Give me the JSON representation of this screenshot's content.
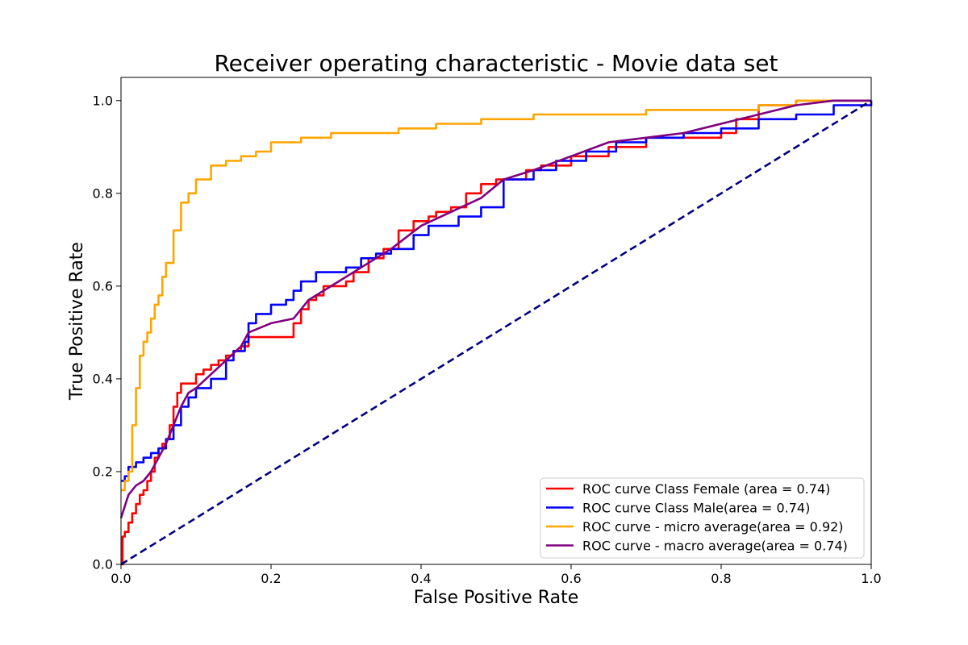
{
  "chart_data": {
    "type": "line",
    "title": "Receiver operating characteristic - Movie data set",
    "xlabel": "False Positive Rate",
    "ylabel": "True Positive Rate",
    "xlim": [
      0.0,
      1.0
    ],
    "ylim": [
      0.0,
      1.05
    ],
    "x_ticks": [
      "0.0",
      "0.2",
      "0.4",
      "0.6",
      "0.8",
      "1.0"
    ],
    "y_ticks": [
      "0.0",
      "0.2",
      "0.4",
      "0.6",
      "0.8",
      "1.0"
    ],
    "grid": false,
    "legend_position": "bottom-right",
    "series": [
      {
        "name": "ROC curve Class Female (area = 0.74)",
        "color": "#ff0000",
        "step": true,
        "x": [
          0.0,
          0.002,
          0.005,
          0.01,
          0.015,
          0.02,
          0.025,
          0.03,
          0.035,
          0.04,
          0.045,
          0.05,
          0.055,
          0.06,
          0.065,
          0.07,
          0.075,
          0.08,
          0.09,
          0.1,
          0.11,
          0.12,
          0.13,
          0.14,
          0.15,
          0.16,
          0.17,
          0.2,
          0.23,
          0.24,
          0.25,
          0.26,
          0.27,
          0.3,
          0.31,
          0.33,
          0.35,
          0.37,
          0.39,
          0.41,
          0.42,
          0.44,
          0.46,
          0.48,
          0.5,
          0.51,
          0.54,
          0.56,
          0.6,
          0.65,
          0.7,
          0.75,
          0.8,
          0.82,
          0.85,
          0.9,
          0.95,
          1.0
        ],
        "y": [
          0.0,
          0.06,
          0.07,
          0.09,
          0.11,
          0.13,
          0.15,
          0.16,
          0.18,
          0.2,
          0.23,
          0.25,
          0.26,
          0.27,
          0.3,
          0.34,
          0.37,
          0.39,
          0.39,
          0.41,
          0.42,
          0.43,
          0.44,
          0.45,
          0.46,
          0.47,
          0.49,
          0.49,
          0.52,
          0.55,
          0.57,
          0.58,
          0.6,
          0.61,
          0.63,
          0.66,
          0.68,
          0.72,
          0.74,
          0.75,
          0.76,
          0.77,
          0.8,
          0.82,
          0.83,
          0.83,
          0.85,
          0.86,
          0.88,
          0.9,
          0.92,
          0.92,
          0.93,
          0.96,
          0.99,
          1.0,
          1.0,
          1.0
        ]
      },
      {
        "name": "ROC curve Class Male(area = 0.74)",
        "color": "#0000ff",
        "step": true,
        "x": [
          0.0,
          0.005,
          0.01,
          0.02,
          0.03,
          0.04,
          0.05,
          0.06,
          0.07,
          0.08,
          0.09,
          0.1,
          0.12,
          0.14,
          0.15,
          0.165,
          0.17,
          0.18,
          0.2,
          0.22,
          0.23,
          0.24,
          0.26,
          0.3,
          0.32,
          0.34,
          0.36,
          0.39,
          0.41,
          0.45,
          0.48,
          0.51,
          0.55,
          0.58,
          0.62,
          0.66,
          0.7,
          0.75,
          0.8,
          0.85,
          0.9,
          0.95,
          1.0
        ],
        "y": [
          0.18,
          0.19,
          0.21,
          0.22,
          0.23,
          0.24,
          0.25,
          0.27,
          0.3,
          0.34,
          0.36,
          0.38,
          0.4,
          0.44,
          0.46,
          0.48,
          0.52,
          0.54,
          0.56,
          0.57,
          0.59,
          0.61,
          0.63,
          0.64,
          0.66,
          0.67,
          0.68,
          0.71,
          0.73,
          0.75,
          0.77,
          0.83,
          0.85,
          0.87,
          0.89,
          0.91,
          0.92,
          0.93,
          0.94,
          0.96,
          0.97,
          0.99,
          1.0
        ]
      },
      {
        "name": "ROC curve - micro average(area = 0.92)",
        "color": "#ffa500",
        "step": true,
        "x": [
          0.0,
          0.005,
          0.01,
          0.015,
          0.02,
          0.025,
          0.03,
          0.035,
          0.04,
          0.045,
          0.05,
          0.055,
          0.06,
          0.07,
          0.08,
          0.09,
          0.1,
          0.12,
          0.14,
          0.16,
          0.18,
          0.2,
          0.24,
          0.28,
          0.33,
          0.37,
          0.42,
          0.48,
          0.55,
          0.62,
          0.7,
          0.78,
          0.85,
          0.9,
          0.95,
          1.0
        ],
        "y": [
          0.16,
          0.18,
          0.2,
          0.3,
          0.38,
          0.45,
          0.48,
          0.5,
          0.53,
          0.56,
          0.58,
          0.62,
          0.65,
          0.72,
          0.78,
          0.8,
          0.83,
          0.86,
          0.87,
          0.88,
          0.89,
          0.91,
          0.92,
          0.93,
          0.93,
          0.94,
          0.95,
          0.96,
          0.97,
          0.97,
          0.98,
          0.98,
          0.99,
          1.0,
          1.0,
          1.0
        ]
      },
      {
        "name": "ROC curve - macro average(area = 0.74)",
        "color": "#800080",
        "step": false,
        "x": [
          0.0,
          0.01,
          0.02,
          0.03,
          0.04,
          0.05,
          0.06,
          0.07,
          0.08,
          0.09,
          0.1,
          0.12,
          0.14,
          0.16,
          0.17,
          0.2,
          0.23,
          0.25,
          0.28,
          0.32,
          0.36,
          0.4,
          0.44,
          0.48,
          0.51,
          0.55,
          0.6,
          0.65,
          0.7,
          0.75,
          0.8,
          0.85,
          0.9,
          0.95,
          1.0
        ],
        "y": [
          0.1,
          0.15,
          0.17,
          0.18,
          0.2,
          0.23,
          0.26,
          0.3,
          0.34,
          0.37,
          0.38,
          0.41,
          0.44,
          0.47,
          0.5,
          0.52,
          0.53,
          0.57,
          0.6,
          0.64,
          0.68,
          0.73,
          0.76,
          0.79,
          0.83,
          0.85,
          0.88,
          0.91,
          0.92,
          0.93,
          0.95,
          0.97,
          0.99,
          1.0,
          1.0
        ]
      },
      {
        "name": "",
        "color": "#000080",
        "dashed": true,
        "step": false,
        "x": [
          0.0,
          1.0
        ],
        "y": [
          0.0,
          1.0
        ]
      }
    ],
    "legend": [
      {
        "label": "ROC curve Class Female (area = 0.74)",
        "color": "#ff0000"
      },
      {
        "label": "ROC curve Class Male(area = 0.74)",
        "color": "#0000ff"
      },
      {
        "label": "ROC curve - micro average(area = 0.92)",
        "color": "#ffa500"
      },
      {
        "label": "ROC curve - macro average(area = 0.74)",
        "color": "#800080"
      }
    ]
  }
}
